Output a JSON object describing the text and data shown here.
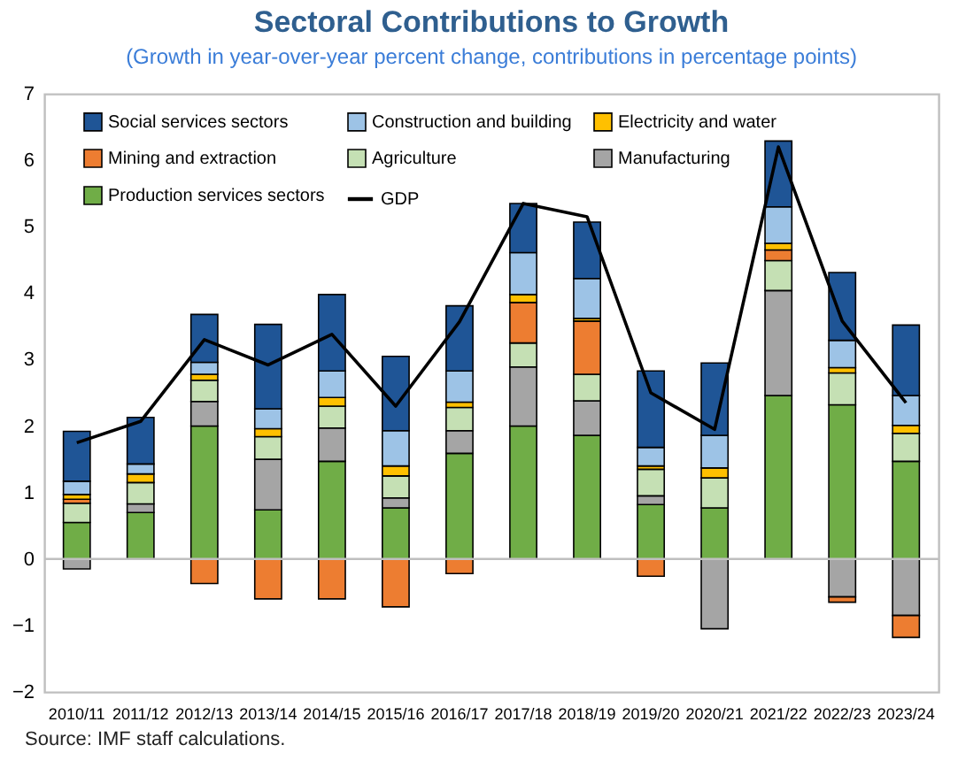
{
  "chart_data": {
    "type": "bar",
    "title": "Sectoral Contributions to Growth",
    "subtitle": "(Growth in year-over-year percent change, contributions in percentage points)",
    "categories": [
      "2010/11",
      "2011/12",
      "2012/13",
      "2013/14",
      "2014/15",
      "2015/16",
      "2016/17",
      "2017/18",
      "2018/19",
      "2019/20",
      "2020/21",
      "2021/22",
      "2022/23",
      "2023/24"
    ],
    "stacked": true,
    "ylim": [
      -2,
      7
    ],
    "yticks": [
      -2,
      -1,
      0,
      1,
      2,
      3,
      4,
      5,
      6,
      7
    ],
    "grid": false,
    "legend": "top left",
    "series": [
      {
        "name": "Production services sectors",
        "color": "#70ad47",
        "values": [
          0.55,
          0.7,
          2.0,
          0.74,
          1.47,
          0.77,
          1.59,
          2.0,
          1.86,
          0.82,
          0.77,
          2.46,
          2.32,
          1.47
        ]
      },
      {
        "name": "Manufacturing",
        "color": "#a5a5a5",
        "values": [
          -0.15,
          0.13,
          0.37,
          0.76,
          0.5,
          0.15,
          0.34,
          0.89,
          0.52,
          0.13,
          -1.05,
          1.58,
          -0.57,
          -0.85
        ]
      },
      {
        "name": "Agriculture",
        "color": "#c5e0b4",
        "values": [
          0.29,
          0.32,
          0.32,
          0.34,
          0.33,
          0.33,
          0.35,
          0.36,
          0.4,
          0.4,
          0.45,
          0.45,
          0.48,
          0.42
        ]
      },
      {
        "name": "Mining and extraction",
        "color": "#ed7d31",
        "values": [
          0.06,
          null,
          -0.37,
          -0.6,
          -0.6,
          -0.72,
          -0.22,
          0.61,
          0.8,
          -0.26,
          null,
          0.16,
          -0.08,
          -0.33
        ]
      },
      {
        "name": "Electricity and water",
        "color": "#ffc000",
        "values": [
          0.07,
          0.13,
          0.09,
          0.12,
          0.13,
          0.15,
          0.08,
          0.12,
          0.04,
          0.05,
          0.15,
          0.1,
          0.08,
          0.12
        ]
      },
      {
        "name": "Construction and building",
        "color": "#9dc3e6",
        "values": [
          0.2,
          0.15,
          0.18,
          0.3,
          0.4,
          0.53,
          0.47,
          0.63,
          0.6,
          0.28,
          0.49,
          0.55,
          0.41,
          0.45
        ]
      },
      {
        "name": "Social services sectors",
        "color": "#1f5596",
        "values": [
          0.75,
          0.7,
          0.72,
          1.27,
          1.15,
          1.12,
          0.98,
          0.74,
          0.85,
          1.15,
          1.09,
          0.99,
          1.02,
          1.06
        ]
      },
      {
        "name": "GDP",
        "type": "line",
        "color": "#000000",
        "values": [
          1.75,
          2.07,
          3.3,
          2.92,
          3.38,
          2.3,
          3.57,
          5.35,
          5.15,
          2.5,
          1.95,
          6.2,
          3.58,
          2.35
        ]
      }
    ],
    "ref_lines": [
      {
        "axis": "y",
        "value": 0,
        "color": "#bfbfbf"
      }
    ],
    "annotations": [
      "Source: IMF staff calculations."
    ]
  }
}
